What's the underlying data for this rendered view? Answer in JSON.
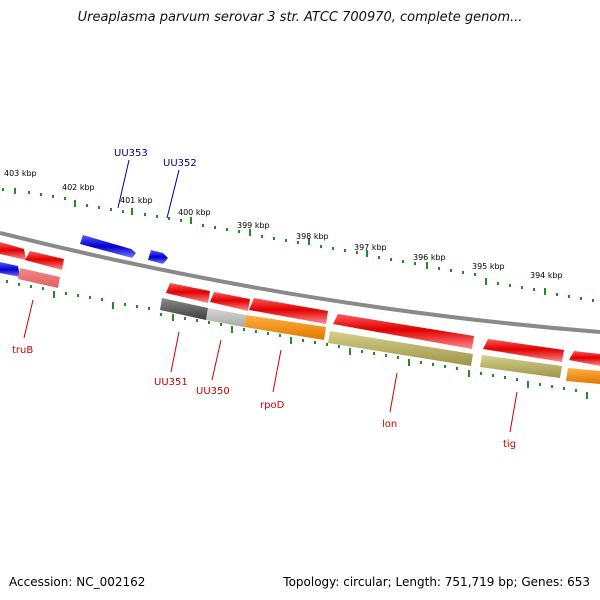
{
  "title": "Ureaplasma parvum serovar 3 str. ATCC 700970, complete genom...",
  "accession": "Accession: NC_002162",
  "summary": "Topology: circular; Length: 751,719 bp; Genes: 653",
  "scale_labels": [
    "403 kbp",
    "402 kbp",
    "401 kbp",
    "400 kbp",
    "399 kbp",
    "398 kbp",
    "397 kbp",
    "396 kbp",
    "395 kbp",
    "394 kbp"
  ],
  "gene_labels": {
    "forward": [
      "UU353",
      "UU352"
    ],
    "reverse": [
      "truB",
      "UU351",
      "UU350",
      "rpoD",
      "lon",
      "tig"
    ]
  },
  "colors": {
    "forward_gene": "#1010e0",
    "reverse_gene": "#e00000",
    "backbone": "#888888",
    "ticks": "#228b22",
    "label_forward": "#00008b",
    "label_reverse": "#cc0000"
  }
}
